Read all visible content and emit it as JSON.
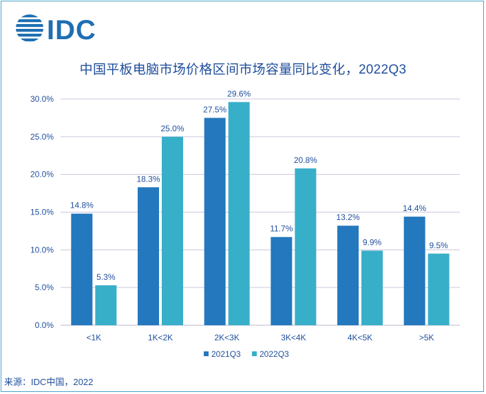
{
  "logo": {
    "text": "IDC"
  },
  "title": "中国平板电脑市场价格区间市场容量同比变化，2022Q3",
  "source": "来源：IDC中国，2022",
  "colors": {
    "s2021": "#2478bd",
    "s2022": "#38afc9",
    "grid": "#c9c6dc",
    "axis_text": "#1f4e9c"
  },
  "chart_data": {
    "type": "bar",
    "title": "中国平板电脑市场价格区间市场容量同比变化，2022Q3",
    "categories": [
      "<1K",
      "1K<2K",
      "2K<3K",
      "3K<4K",
      "4K<5K",
      ">5K"
    ],
    "series": [
      {
        "name": "2021Q3",
        "values": [
          14.8,
          18.3,
          27.5,
          11.7,
          13.2,
          14.4
        ],
        "labels": [
          "14.8%",
          "18.3%",
          "27.5%",
          "11.7%",
          "13.2%",
          "14.4%"
        ]
      },
      {
        "name": "2022Q3",
        "values": [
          5.3,
          25.0,
          29.6,
          20.8,
          9.9,
          9.5
        ],
        "labels": [
          "5.3%",
          "25.0%",
          "29.6%",
          "20.8%",
          "9.9%",
          "9.5%"
        ]
      }
    ],
    "yticks": [
      "0.0%",
      "5.0%",
      "10.0%",
      "15.0%",
      "20.0%",
      "25.0%",
      "30.0%"
    ],
    "ylim": [
      0,
      30
    ],
    "grid": true,
    "legend_position": "bottom"
  }
}
